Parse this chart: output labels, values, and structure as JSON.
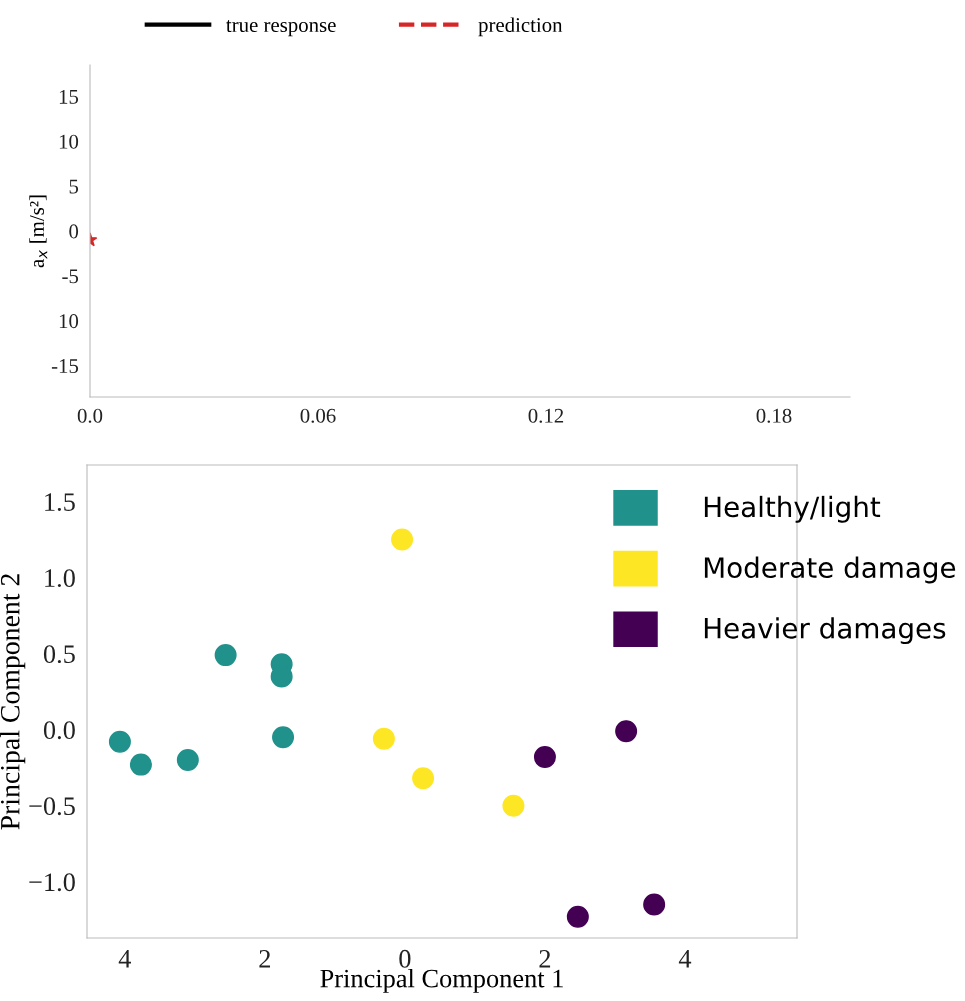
{
  "chart_data": [
    {
      "type": "line",
      "ylabel": "a$_{x}$ [m/s²]",
      "xlim": [
        0,
        0.2
      ],
      "xticks": [
        {
          "value": 0,
          "label": "0.0"
        },
        0.06,
        0.12,
        {
          "value": 0.18,
          "label": "0.18"
        }
      ],
      "ylim": [
        -18.5,
        18.5
      ],
      "yticks": [
        15,
        10,
        5,
        0,
        {
          "value": -5,
          "label": "-5"
        },
        {
          "value": -10,
          "label": "10"
        },
        -15
      ],
      "legend": "top",
      "grid": false,
      "series": [
        {
          "name": "true response",
          "color": "#000000",
          "line_style": "solid"
        },
        {
          "name": "prediction",
          "color": "#d62728",
          "line_style": "dashed",
          "marker": "star",
          "x": [
            0
          ],
          "values": [
            -1
          ]
        }
      ]
    },
    {
      "type": "scatter",
      "xlabel": "Principal Component 1",
      "ylabel": "Principal Component 2",
      "xlim": [
        -4.54,
        5.6
      ],
      "xticks": [
        {
          "value": -4,
          "label": "4"
        },
        {
          "value": -2,
          "label": "2"
        },
        0,
        2,
        4
      ],
      "ylim": [
        -1.37,
        1.74
      ],
      "yticks": [
        {
          "value": -1.0,
          "label": "−1.0"
        },
        {
          "value": -0.5,
          "label": "−0.5"
        },
        {
          "value": 0.0,
          "label": "0.0"
        },
        0.5,
        {
          "value": 1.0,
          "label": "1.0"
        },
        1.5
      ],
      "legend": "top right",
      "grid": false,
      "marker": "circle",
      "series": [
        {
          "name": "Healthy/light",
          "color": "#21918c",
          "x": [
            -4.07,
            -3.77,
            -3.1,
            -2.56,
            -1.76,
            -1.76,
            -1.74
          ],
          "values": [
            -0.08,
            -0.23,
            -0.2,
            0.49,
            0.43,
            0.35,
            -0.05
          ]
        },
        {
          "name": "Moderate damage",
          "color": "#fde725",
          "x": [
            -0.04,
            -0.3,
            0.26,
            1.55
          ],
          "values": [
            1.25,
            -0.06,
            -0.32,
            -0.5
          ]
        },
        {
          "name": "Heavier damages",
          "color": "#440154",
          "x": [
            2.0,
            3.16,
            2.47,
            3.56
          ],
          "values": [
            -0.18,
            -0.01,
            -1.23,
            -1.15
          ]
        }
      ]
    }
  ]
}
